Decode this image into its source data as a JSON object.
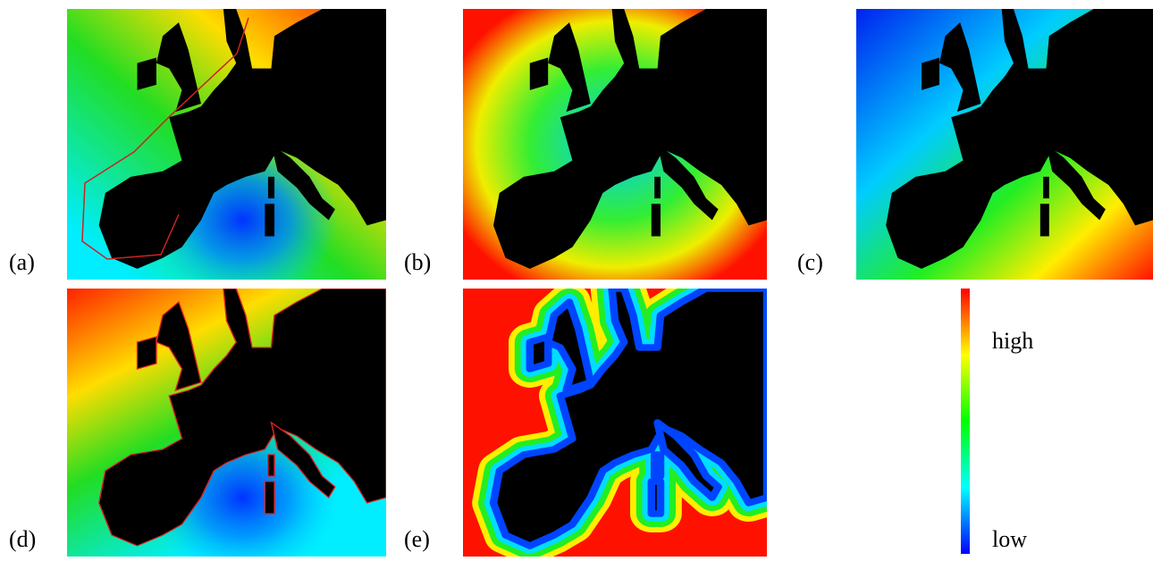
{
  "panels": [
    {
      "label": "(a)"
    },
    {
      "label": "(b)"
    },
    {
      "label": "(c)"
    },
    {
      "label": "(d)"
    },
    {
      "label": "(e)"
    }
  ],
  "colorbar": {
    "high": "high",
    "low": "low"
  }
}
